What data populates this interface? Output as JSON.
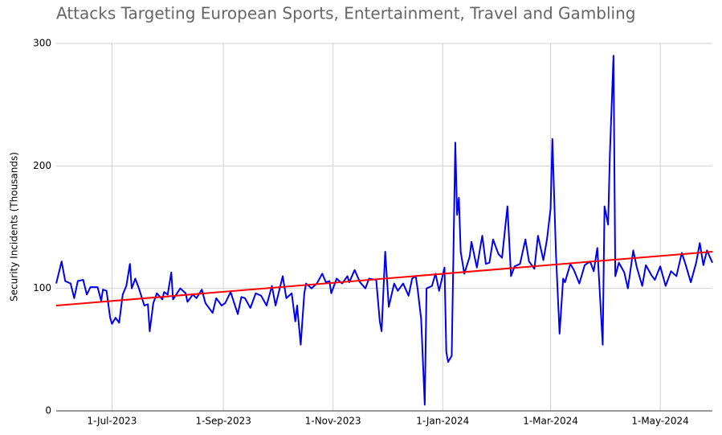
{
  "chart_data": {
    "type": "line",
    "title": "Attacks Targeting European Sports, Entertainment, Travel and Gambling",
    "y_label": "Security Incidents (Thousands)",
    "x": [
      "2023-05-31",
      "2023-06-03",
      "2023-06-05",
      "2023-06-08",
      "2023-06-10",
      "2023-06-12",
      "2023-06-15",
      "2023-06-17",
      "2023-06-19",
      "2023-06-23",
      "2023-06-25",
      "2023-06-26",
      "2023-06-28",
      "2023-06-30",
      "2023-07-01",
      "2023-07-03",
      "2023-07-05",
      "2023-07-07",
      "2023-07-09",
      "2023-07-11",
      "2023-07-12",
      "2023-07-14",
      "2023-07-16",
      "2023-07-19",
      "2023-07-21",
      "2023-07-22",
      "2023-07-24",
      "2023-07-26",
      "2023-07-29",
      "2023-07-30",
      "2023-08-01",
      "2023-08-03",
      "2023-08-04",
      "2023-08-08",
      "2023-08-11",
      "2023-08-12",
      "2023-08-15",
      "2023-08-17",
      "2023-08-20",
      "2023-08-22",
      "2023-08-26",
      "2023-08-28",
      "2023-08-31",
      "2023-09-02",
      "2023-09-05",
      "2023-09-09",
      "2023-09-11",
      "2023-09-13",
      "2023-09-16",
      "2023-09-19",
      "2023-09-22",
      "2023-09-25",
      "2023-09-28",
      "2023-09-30",
      "2023-10-01",
      "2023-10-04",
      "2023-10-06",
      "2023-10-09",
      "2023-10-11",
      "2023-10-12",
      "2023-10-14",
      "2023-10-16",
      "2023-10-17",
      "2023-10-20",
      "2023-10-23",
      "2023-10-26",
      "2023-10-28",
      "2023-10-30",
      "2023-10-31",
      "2023-11-03",
      "2023-11-06",
      "2023-11-09",
      "2023-11-10",
      "2023-11-13",
      "2023-11-16",
      "2023-11-19",
      "2023-11-21",
      "2023-11-25",
      "2023-11-27",
      "2023-11-28",
      "2023-11-30",
      "2023-12-02",
      "2023-12-05",
      "2023-12-07",
      "2023-12-10",
      "2023-12-13",
      "2023-12-15",
      "2023-12-17",
      "2023-12-18",
      "2023-12-20",
      "2023-12-22",
      "2023-12-23",
      "2023-12-26",
      "2023-12-28",
      "2023-12-30",
      "2024-01-02",
      "2024-01-03",
      "2024-01-04",
      "2024-01-06",
      "2024-01-08",
      "2024-01-09",
      "2024-01-10",
      "2024-01-11",
      "2024-01-13",
      "2024-01-16",
      "2024-01-17",
      "2024-01-20",
      "2024-01-23",
      "2024-01-25",
      "2024-01-27",
      "2024-01-29",
      "2024-02-01",
      "2024-02-03",
      "2024-02-06",
      "2024-02-08",
      "2024-02-10",
      "2024-02-13",
      "2024-02-16",
      "2024-02-18",
      "2024-02-21",
      "2024-02-23",
      "2024-02-26",
      "2024-02-28",
      "2024-03-01",
      "2024-03-02",
      "2024-03-04",
      "2024-03-06",
      "2024-03-08",
      "2024-03-09",
      "2024-03-12",
      "2024-03-14",
      "2024-03-17",
      "2024-03-20",
      "2024-03-23",
      "2024-03-25",
      "2024-03-27",
      "2024-03-30",
      "2024-03-31",
      "2024-04-02",
      "2024-04-03",
      "2024-04-05",
      "2024-04-06",
      "2024-04-08",
      "2024-04-11",
      "2024-04-13",
      "2024-04-16",
      "2024-04-18",
      "2024-04-21",
      "2024-04-23",
      "2024-04-26",
      "2024-04-28",
      "2024-05-01",
      "2024-05-04",
      "2024-05-07",
      "2024-05-10",
      "2024-05-13",
      "2024-05-15",
      "2024-05-18",
      "2024-05-21",
      "2024-05-23",
      "2024-05-25",
      "2024-05-27",
      "2024-05-30"
    ],
    "series": [
      {
        "color": "#0000ee",
        "values": [
          104,
          122,
          106,
          104,
          92,
          106,
          107,
          95,
          101,
          101,
          90,
          99,
          98,
          76,
          71,
          76,
          72,
          95,
          102,
          120,
          100,
          108,
          100,
          86,
          87,
          65,
          88,
          96,
          91,
          97,
          95,
          113,
          91,
          100,
          96,
          89,
          95,
          92,
          99,
          88,
          80,
          92,
          86,
          88,
          97,
          79,
          93,
          92,
          84,
          96,
          94,
          86,
          102,
          86,
          92,
          110,
          92,
          96,
          73,
          86,
          54,
          96,
          104,
          100,
          104,
          112,
          105,
          106,
          96,
          108,
          104,
          110,
          105,
          115,
          105,
          100,
          108,
          107,
          73,
          65,
          130,
          85,
          104,
          98,
          104,
          94,
          108,
          110,
          100,
          75,
          5,
          100,
          102,
          112,
          98,
          117,
          48,
          40,
          45,
          219,
          160,
          174,
          130,
          112,
          126,
          138,
          117,
          143,
          120,
          121,
          140,
          128,
          125,
          167,
          110,
          118,
          120,
          140,
          122,
          116,
          143,
          123,
          140,
          165,
          222,
          128,
          63,
          108,
          105,
          120,
          115,
          104,
          119,
          122,
          114,
          133,
          54,
          167,
          152,
          210,
          290,
          110,
          121,
          113,
          100,
          131,
          117,
          102,
          119,
          111,
          107,
          118,
          102,
          114,
          110,
          129,
          120,
          105,
          121,
          137,
          119,
          131,
          121
        ]
      }
    ],
    "trend": {
      "color": "#ff0000",
      "x": [
        "2023-05-31",
        "2024-05-30"
      ],
      "values": [
        86,
        130
      ]
    },
    "xlim": [
      "2023-05-31",
      "2024-05-30"
    ],
    "xticks": [
      {
        "value": "2023-07-01",
        "label": "1-Jul-2023"
      },
      {
        "value": "2023-09-01",
        "label": "1-Sep-2023"
      },
      {
        "value": "2023-11-01",
        "label": "1-Nov-2023"
      },
      {
        "value": "2024-01-01",
        "label": "1-Jan-2024"
      },
      {
        "value": "2024-03-01",
        "label": "1-Mar-2024"
      },
      {
        "value": "2024-05-01",
        "label": "1-May-2024"
      }
    ],
    "ylim": [
      0,
      300
    ],
    "yticks": [
      0,
      100,
      200,
      300
    ],
    "grid": true
  }
}
